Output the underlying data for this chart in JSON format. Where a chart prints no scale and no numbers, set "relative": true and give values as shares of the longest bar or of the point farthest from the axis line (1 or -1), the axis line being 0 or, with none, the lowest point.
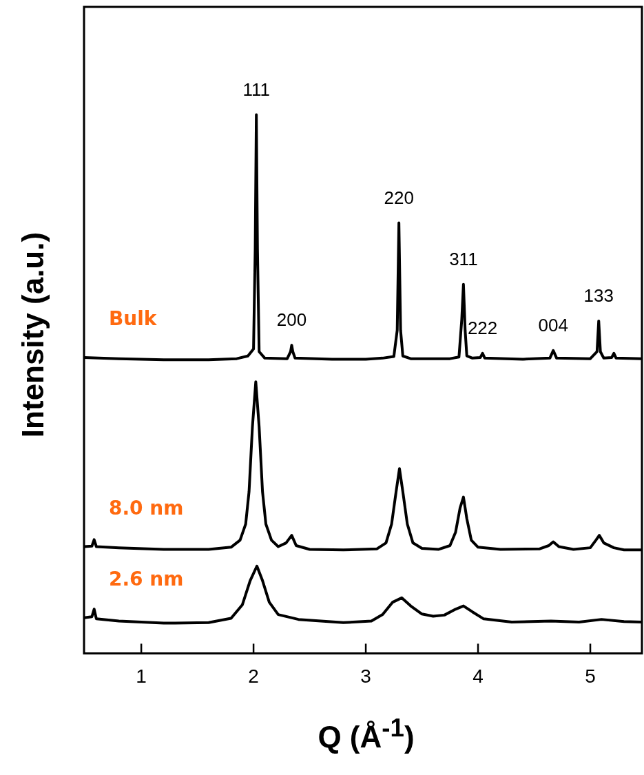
{
  "chart_data": {
    "type": "line",
    "xlabel": "Q (Å$^{-1}$)",
    "ylabel": "Intensity (a.u.)",
    "relative": true,
    "xlim": [
      0.49,
      5.46
    ],
    "xticks": [
      1,
      2,
      3,
      4,
      5
    ],
    "grid": false,
    "legend": false,
    "marker": "none",
    "line_style": "solid",
    "series": [
      {
        "name": "Bulk",
        "color": "#000000",
        "x": [
          0.49,
          0.8,
          1.2,
          1.6,
          1.85,
          1.95,
          2.0,
          2.015,
          2.025,
          2.035,
          2.05,
          2.1,
          2.3,
          2.33,
          2.34,
          2.35,
          2.37,
          2.7,
          3.0,
          3.15,
          3.25,
          3.28,
          3.295,
          3.31,
          3.33,
          3.4,
          3.75,
          3.83,
          3.855,
          3.87,
          3.885,
          3.9,
          3.95,
          4.02,
          4.04,
          4.06,
          4.4,
          4.64,
          4.67,
          4.7,
          5.0,
          5.06,
          5.075,
          5.09,
          5.12,
          5.19,
          5.21,
          5.23,
          5.46
        ],
        "values": [
          0.549,
          0.547,
          0.545,
          0.545,
          0.547,
          0.552,
          0.565,
          0.75,
          1.0,
          0.75,
          0.56,
          0.548,
          0.547,
          0.56,
          0.572,
          0.56,
          0.548,
          0.546,
          0.546,
          0.548,
          0.551,
          0.6,
          0.799,
          0.6,
          0.552,
          0.547,
          0.547,
          0.55,
          0.62,
          0.685,
          0.6,
          0.552,
          0.548,
          0.549,
          0.557,
          0.548,
          0.546,
          0.548,
          0.562,
          0.548,
          0.547,
          0.56,
          0.617,
          0.56,
          0.548,
          0.549,
          0.557,
          0.548,
          0.547
        ]
      },
      {
        "name": "8.0 nm",
        "color": "#000000",
        "x": [
          0.49,
          0.56,
          0.58,
          0.6,
          0.8,
          1.2,
          1.6,
          1.8,
          1.88,
          1.93,
          1.96,
          1.99,
          2.02,
          2.05,
          2.08,
          2.11,
          2.16,
          2.22,
          2.29,
          2.34,
          2.38,
          2.5,
          2.8,
          3.1,
          3.18,
          3.23,
          3.27,
          3.3,
          3.33,
          3.37,
          3.42,
          3.5,
          3.65,
          3.75,
          3.8,
          3.84,
          3.87,
          3.9,
          3.94,
          4.0,
          4.2,
          4.55,
          4.63,
          4.67,
          4.72,
          4.85,
          5.0,
          5.05,
          5.08,
          5.12,
          5.21,
          5.3,
          5.46
        ],
        "values": [
          0.198,
          0.199,
          0.211,
          0.198,
          0.196,
          0.193,
          0.193,
          0.197,
          0.21,
          0.24,
          0.3,
          0.42,
          0.504,
          0.42,
          0.3,
          0.24,
          0.21,
          0.198,
          0.205,
          0.219,
          0.2,
          0.193,
          0.192,
          0.194,
          0.205,
          0.24,
          0.3,
          0.343,
          0.3,
          0.24,
          0.205,
          0.195,
          0.193,
          0.2,
          0.225,
          0.27,
          0.29,
          0.25,
          0.21,
          0.197,
          0.193,
          0.194,
          0.2,
          0.207,
          0.198,
          0.193,
          0.196,
          0.21,
          0.219,
          0.205,
          0.196,
          0.192,
          0.192
        ]
      },
      {
        "name": "2.6 nm",
        "color": "#000000",
        "x": [
          0.49,
          0.56,
          0.58,
          0.6,
          0.8,
          1.2,
          1.6,
          1.8,
          1.9,
          1.97,
          2.03,
          2.08,
          2.14,
          2.22,
          2.4,
          2.8,
          3.05,
          3.15,
          3.24,
          3.32,
          3.4,
          3.5,
          3.6,
          3.7,
          3.8,
          3.87,
          3.95,
          4.05,
          4.3,
          4.65,
          4.9,
          5.1,
          5.3,
          5.46
        ],
        "values": [
          0.066,
          0.068,
          0.082,
          0.064,
          0.06,
          0.056,
          0.057,
          0.065,
          0.09,
          0.135,
          0.162,
          0.135,
          0.095,
          0.072,
          0.063,
          0.057,
          0.06,
          0.072,
          0.095,
          0.103,
          0.088,
          0.073,
          0.069,
          0.071,
          0.082,
          0.088,
          0.077,
          0.064,
          0.058,
          0.06,
          0.058,
          0.063,
          0.059,
          0.058
        ]
      }
    ],
    "annotations": [
      {
        "text": "111",
        "x": 2.025,
        "y": 1.0
      },
      {
        "text": "200",
        "x": 2.34,
        "y": 0.572
      },
      {
        "text": "220",
        "x": 3.295,
        "y": 0.799
      },
      {
        "text": "311",
        "x": 3.87,
        "y": 0.685
      },
      {
        "text": "222",
        "x": 4.04,
        "y": 0.557
      },
      {
        "text": "004",
        "x": 4.67,
        "y": 0.562
      },
      {
        "text": "133",
        "x": 5.075,
        "y": 0.617
      }
    ]
  }
}
